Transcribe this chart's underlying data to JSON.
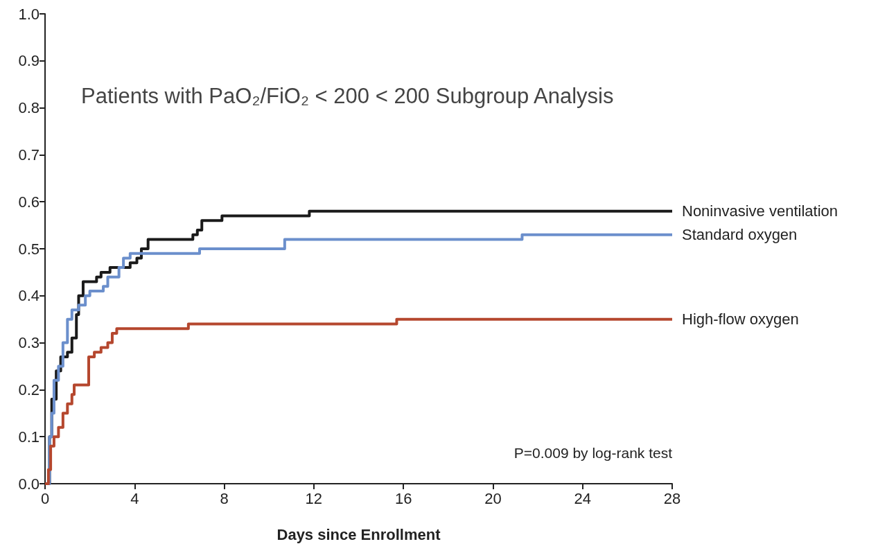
{
  "chart_data": {
    "type": "step",
    "title": "Patients with PaO₂/FiO₂ < 200 < 200 Subgroup Analysis",
    "xlabel": "Days since Enrollment",
    "annotations": [
      "P=0.009 by log-rank test"
    ],
    "xlim": [
      0,
      28
    ],
    "xticks": [
      0,
      4,
      8,
      12,
      16,
      20,
      24,
      28
    ],
    "ylim": [
      0,
      1
    ],
    "yticks": [
      {
        "value": 0,
        "label": "0.0"
      },
      {
        "value": 0.1,
        "label": "0.1"
      },
      {
        "value": 0.2,
        "label": "0.2"
      },
      {
        "value": 0.3,
        "label": "0.3"
      },
      {
        "value": 0.4,
        "label": "0.4"
      },
      {
        "value": 0.5,
        "label": "0.5"
      },
      {
        "value": 0.6,
        "label": "0.6"
      },
      {
        "value": 0.7,
        "label": "0.7"
      },
      {
        "value": 0.8,
        "label": "0.8"
      },
      {
        "value": 0.9,
        "label": "0.9"
      },
      {
        "value": 1,
        "label": "1.0"
      }
    ],
    "grid": false,
    "legend": false,
    "marker": "none",
    "line_style": "solid",
    "series": [
      {
        "name": "Noninvasive ventilation",
        "color": "#1a1a1a",
        "x": [
          0,
          0.2,
          0.3,
          0.5,
          0.7,
          1.0,
          1.2,
          1.4,
          1.5,
          1.7,
          2.3,
          2.5,
          2.9,
          3.8,
          4.1,
          4.3,
          4.6,
          6.6,
          6.8,
          7.0,
          7.3,
          7.9,
          11.8,
          28
        ],
        "values": [
          0,
          0.1,
          0.18,
          0.24,
          0.27,
          0.28,
          0.31,
          0.36,
          0.4,
          0.43,
          0.44,
          0.45,
          0.46,
          0.47,
          0.48,
          0.5,
          0.52,
          0.53,
          0.54,
          0.56,
          0.56,
          0.57,
          0.58,
          0.58
        ]
      },
      {
        "name": "Standard oxygen",
        "color": "#6b8fcc",
        "x": [
          0,
          0.2,
          0.3,
          0.4,
          0.6,
          0.8,
          1.0,
          1.2,
          1.5,
          1.8,
          2.0,
          2.6,
          2.8,
          3.3,
          3.5,
          3.8,
          6.9,
          10.7,
          21.3,
          28
        ],
        "values": [
          0,
          0.1,
          0.15,
          0.22,
          0.25,
          0.3,
          0.35,
          0.37,
          0.38,
          0.4,
          0.41,
          0.42,
          0.44,
          0.46,
          0.48,
          0.49,
          0.5,
          0.52,
          0.53,
          0.53
        ]
      },
      {
        "name": "High-flow oxygen",
        "color": "#b5472e",
        "x": [
          0,
          0.15,
          0.25,
          0.4,
          0.6,
          0.8,
          1.0,
          1.2,
          1.3,
          1.95,
          2.2,
          2.5,
          2.8,
          3.0,
          3.2,
          6.4,
          15.7,
          28
        ],
        "values": [
          0,
          0.03,
          0.08,
          0.1,
          0.12,
          0.15,
          0.17,
          0.19,
          0.21,
          0.27,
          0.28,
          0.29,
          0.3,
          0.32,
          0.33,
          0.34,
          0.35,
          0.35
        ]
      }
    ]
  }
}
